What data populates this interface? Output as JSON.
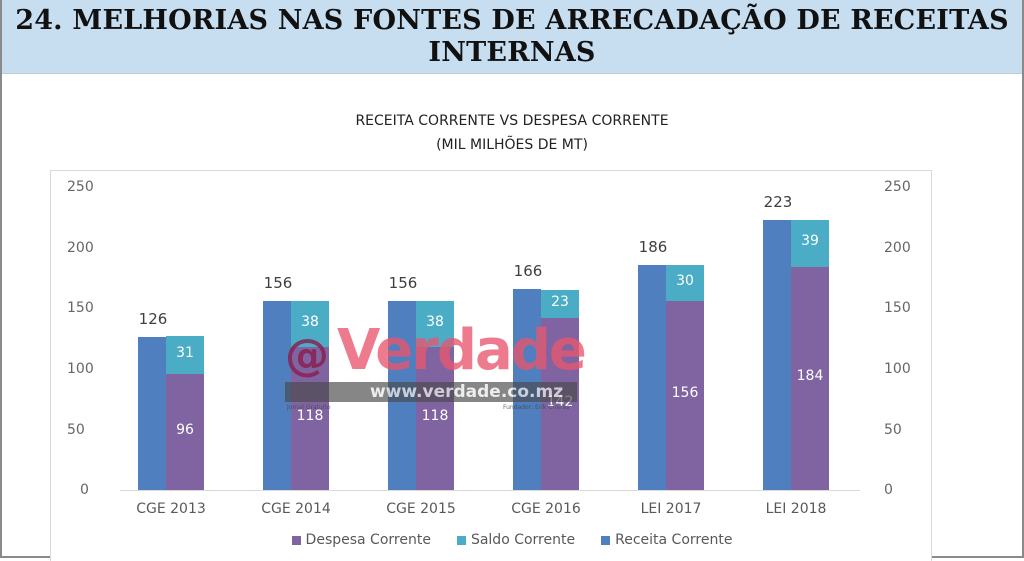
{
  "header": {
    "title": "24. MELHORIAS NAS FONTES DE ARRECADAÇÃO DE RECEITAS INTERNAS"
  },
  "chart_title": {
    "line1": "RECEITA CORRENTE VS DESPESA CORRENTE",
    "line2": "(MIL MILHÕES DE MT)"
  },
  "axis": {
    "ticks": [
      "250",
      "200",
      "150",
      "100",
      "50",
      "0"
    ]
  },
  "categories": [
    "CGE 2013",
    "CGE 2014",
    "CGE 2015",
    "CGE 2016",
    "LEI 2017",
    "LEI 2018"
  ],
  "bars": [
    {
      "receita": "126",
      "saldo": "31",
      "despesa": "96"
    },
    {
      "receita": "156",
      "saldo": "38",
      "despesa": "118"
    },
    {
      "receita": "156",
      "saldo": "38",
      "despesa": "118"
    },
    {
      "receita": "166",
      "saldo": "23",
      "despesa": "142"
    },
    {
      "receita": "186",
      "saldo": "30",
      "despesa": "156"
    },
    {
      "receita": "223",
      "saldo": "39",
      "despesa": "184"
    }
  ],
  "legend": {
    "despesa": "Despesa Corrente",
    "saldo": "Saldo Corrente",
    "receita": "Receita Corrente"
  },
  "colors": {
    "receita": "#4f7fbf",
    "saldo": "#4bacc6",
    "despesa": "#8064a2",
    "header_bg": "#c7ddf0"
  },
  "watermark": {
    "at": "@",
    "brand": "Verdade",
    "url": "www.verdade.co.mz",
    "tagline": "Jornal Gratuito",
    "founder": "Fundador: Erik Charas"
  },
  "chart_data": {
    "type": "bar",
    "title": "RECEITA CORRENTE VS DESPESA CORRENTE (MIL MILHÕES DE MT)",
    "xlabel": "",
    "ylabel": "",
    "ylim": [
      0,
      250
    ],
    "yticks": [
      0,
      50,
      100,
      150,
      200,
      250
    ],
    "secondary_y": {
      "ylim": [
        0,
        250
      ],
      "yticks": [
        0,
        50,
        100,
        150,
        200,
        250
      ]
    },
    "categories": [
      "CGE 2013",
      "CGE 2014",
      "CGE 2015",
      "CGE 2016",
      "LEI 2017",
      "LEI 2018"
    ],
    "series": [
      {
        "name": "Receita Corrente",
        "values": [
          126,
          156,
          156,
          166,
          186,
          223
        ],
        "stack": "receita"
      },
      {
        "name": "Despesa Corrente",
        "values": [
          96,
          118,
          118,
          142,
          156,
          184
        ],
        "stack": "despesa+saldo"
      },
      {
        "name": "Saldo Corrente",
        "values": [
          31,
          38,
          38,
          23,
          30,
          39
        ],
        "stack": "despesa+saldo"
      }
    ],
    "legend_position": "bottom",
    "grid": false
  }
}
